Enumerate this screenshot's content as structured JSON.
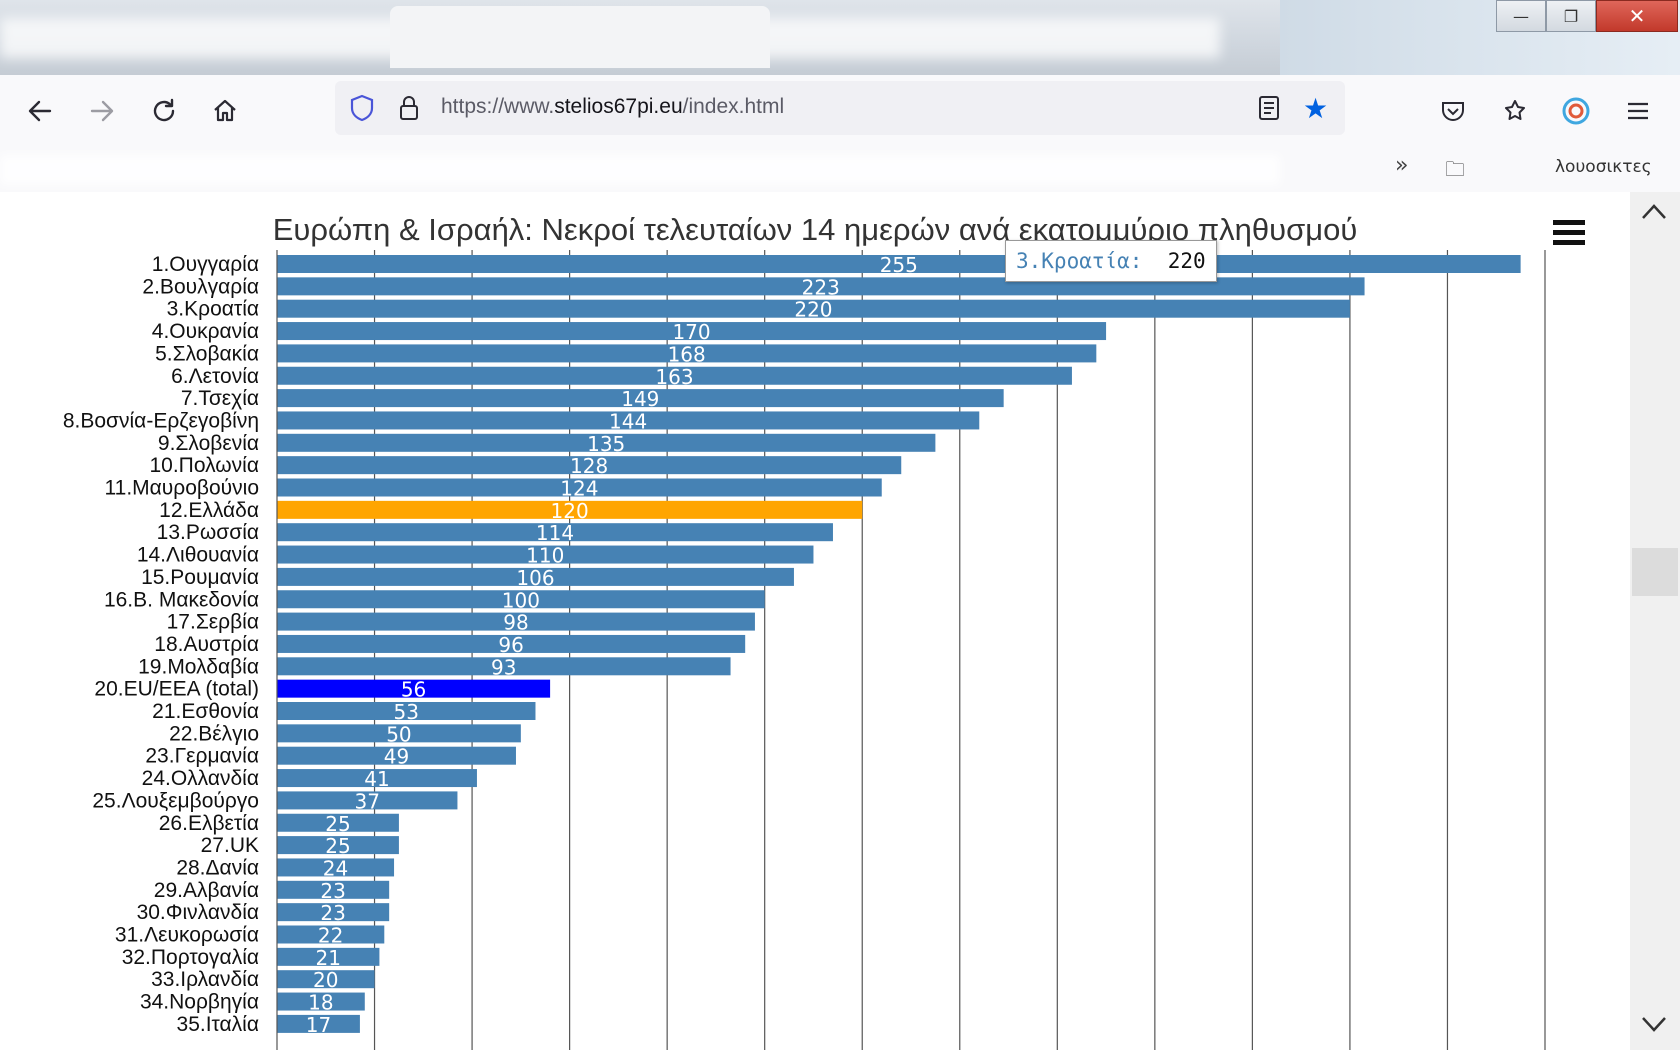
{
  "window": {
    "minimize": "—",
    "restore": "❐",
    "close": "✕"
  },
  "nav": {
    "url_prefix": "https://www.",
    "url_domain": "stelios67pi.eu",
    "url_path": "/index.html"
  },
  "bookmarks": {
    "other_label": "λουοσικτες"
  },
  "chart_data": {
    "type": "bar",
    "orientation": "horizontal",
    "title": "Ευρώπη & Ισραήλ: Νεκροί τελευταίων 14 ημερών ανά εκατομμύριο πληθυσμού",
    "categories": [
      "1.Ουγγαρία",
      "2.Βουλγαρία",
      "3.Κροατία",
      "4.Ουκρανία",
      "5.Σλοβακία",
      "6.Λετονία",
      "7.Τσεχία",
      "8.Βοσνία-Ερζεγοβίνη",
      "9.Σλοβενία",
      "10.Πολωνία",
      "11.Μαυροβούνιο",
      "12.Ελλάδα",
      "13.Ρωσσία",
      "14.Λιθουανία",
      "15.Ρουμανία",
      "16.Β. Μακεδονία",
      "17.Σερβία",
      "18.Αυστρία",
      "19.Μολδαβία",
      "20.EU/EEA (total)",
      "21.Εσθονία",
      "22.Βέλγιο",
      "23.Γερμανία",
      "24.Ολλανδία",
      "25.Λουξεμβούργο",
      "26.Ελβετία",
      "27.UK",
      "28.Δανία",
      "29.Αλβανία",
      "30.Φινλανδία",
      "31.Λευκορωσία",
      "32.Πορτογαλία",
      "33.Ιρλανδία",
      "34.Νορβηγία",
      "35.Ιταλία"
    ],
    "values": [
      255,
      223,
      220,
      170,
      168,
      163,
      149,
      144,
      135,
      128,
      124,
      120,
      114,
      110,
      106,
      100,
      98,
      96,
      93,
      56,
      53,
      50,
      49,
      41,
      37,
      25,
      25,
      24,
      23,
      23,
      22,
      21,
      20,
      18,
      17
    ],
    "highlight": {
      "12.Ελλάδα": "#ffa500",
      "20.EU/EEA (total)": "#0000ff"
    },
    "bar_color": "#4682b4",
    "xlim": [
      0,
      260
    ],
    "grid_step": 20,
    "grid": true,
    "tooltip": {
      "label": "3.Κροατία:",
      "value": "220"
    }
  }
}
